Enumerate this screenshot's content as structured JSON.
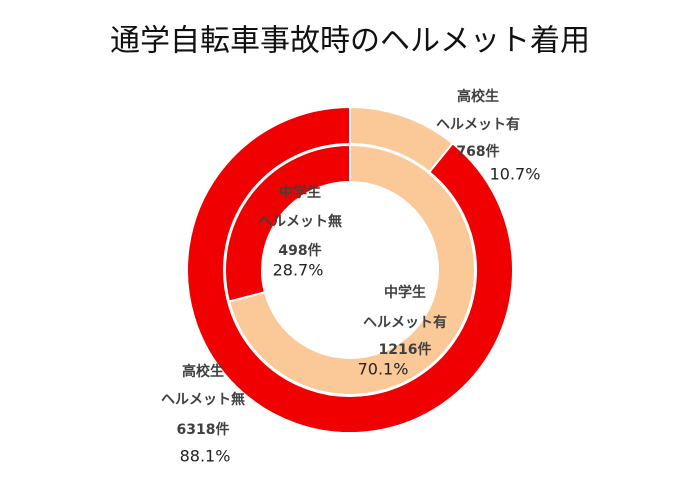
{
  "chart_data": {
    "type": "donut",
    "title": "通学自転車事故時のヘルメット着用",
    "series": [
      {
        "name": "高校生",
        "categories": [
          "ヘルメット有",
          "ヘルメット無"
        ],
        "colors": [
          "#fbc898",
          "#f00000"
        ],
        "counts": [
          768,
          6318
        ],
        "count_labels": [
          "768件",
          "6318件"
        ],
        "shares": [
          10.7,
          88.1
        ],
        "share_labels": [
          "10.7%",
          "88.1%"
        ]
      },
      {
        "name": "中学生",
        "categories": [
          "ヘルメット有",
          "ヘルメット無"
        ],
        "colors": [
          "#fbc898",
          "#f00000"
        ],
        "counts": [
          1216,
          498
        ],
        "count_labels": [
          "1216件",
          "498件"
        ],
        "shares": [
          70.1,
          28.7
        ],
        "share_labels": [
          "70.1%",
          "28.7%"
        ]
      }
    ]
  }
}
